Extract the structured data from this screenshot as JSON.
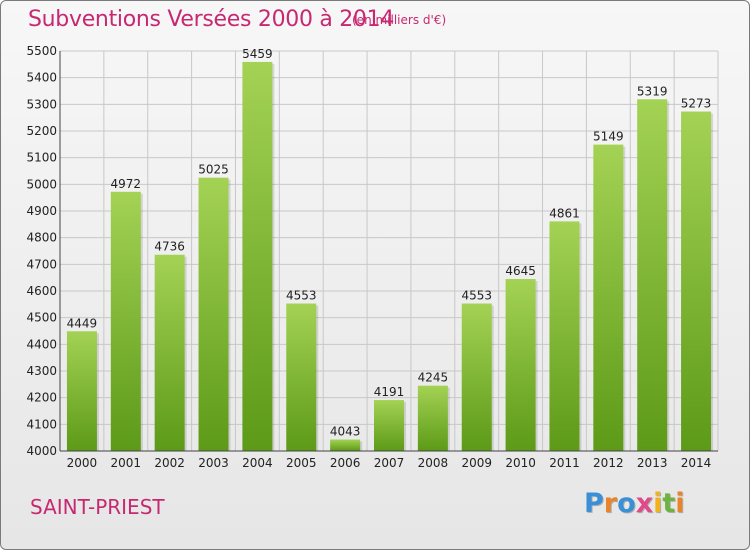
{
  "title": "Subventions Versées 2000 à 2014",
  "subtitle": "(en milliers d'€)",
  "commune": "SAINT-PRIEST",
  "logo": {
    "letters": [
      "P",
      "r",
      "o",
      "x",
      "i",
      "t",
      "i"
    ],
    "colors": [
      "#3a8fd6",
      "#e8842a",
      "#3a8fd6",
      "#e04a8a",
      "#f2b21e",
      "#6db33f",
      "#e8842a"
    ]
  },
  "colors": {
    "title": "#c72872",
    "bar_top": "#a4d254",
    "bar_bottom": "#5c9a17",
    "grid": "#c8c8c8",
    "axis_text": "#222222"
  },
  "chart_data": {
    "type": "bar",
    "categories": [
      "2000",
      "2001",
      "2002",
      "2003",
      "2004",
      "2005",
      "2006",
      "2007",
      "2008",
      "2009",
      "2010",
      "2011",
      "2012",
      "2013",
      "2014"
    ],
    "values": [
      4449,
      4972,
      4736,
      5025,
      5459,
      4553,
      4043,
      4191,
      4245,
      4553,
      4645,
      4861,
      5149,
      5319,
      5273
    ],
    "ylim": [
      4000,
      5500
    ],
    "yticks": [
      4000,
      4100,
      4200,
      4300,
      4400,
      4500,
      4600,
      4700,
      4800,
      4900,
      5000,
      5100,
      5200,
      5300,
      5400,
      5500
    ],
    "grid": true,
    "data_labels": true
  }
}
